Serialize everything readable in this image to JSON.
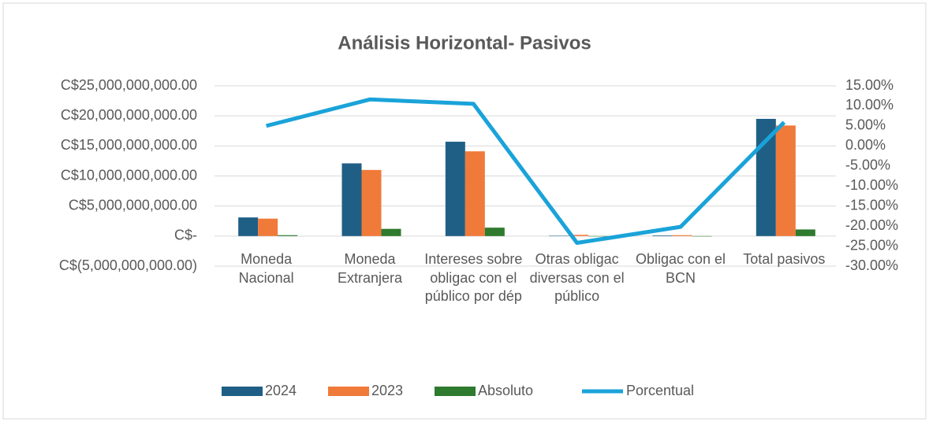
{
  "chart_data": {
    "type": "bar",
    "title": "Análisis Horizontal- Pasivos",
    "categories": [
      "Moneda Nacional",
      "Moneda Extranjera",
      "Intereses sobre obligac con el público por dép",
      "Otras obligac diversas con el público",
      "Obligac con el BCN",
      "Total pasivos"
    ],
    "series": [
      {
        "name": "2024",
        "color": "#1f5f86",
        "values": [
          3100000000,
          12100000000,
          15700000000,
          50000000,
          100000000,
          19500000000
        ]
      },
      {
        "name": "2023",
        "color": "#f07a3a",
        "values": [
          2900000000,
          11000000000,
          14100000000,
          200000000,
          150000000,
          18400000000
        ]
      },
      {
        "name": "Absoluto",
        "color": "#2e7a2e",
        "values": [
          150000000,
          1200000000,
          1400000000,
          -50000000,
          -30000000,
          1100000000
        ]
      },
      {
        "name": "Porcentual",
        "color": "#1aa3d9",
        "type": "line",
        "axis": "y2",
        "values": [
          5.0,
          11.6,
          10.5,
          -24.2,
          -20.2,
          5.9
        ]
      }
    ],
    "ylim": [
      -5000000000,
      25000000000
    ],
    "yticks": [
      {
        "value": -5000000000,
        "label": "C$(5,000,000,000.00)"
      },
      {
        "value": 0,
        "label": "C$-"
      },
      {
        "value": 5000000000,
        "label": "C$5,000,000,000.00"
      },
      {
        "value": 10000000000,
        "label": "C$10,000,000,000.00"
      },
      {
        "value": 15000000000,
        "label": "C$15,000,000,000.00"
      },
      {
        "value": 20000000000,
        "label": "C$20,000,000,000.00"
      },
      {
        "value": 25000000000,
        "label": "C$25,000,000,000.00"
      }
    ],
    "y2lim": [
      -30,
      15
    ],
    "y2ticks": [
      {
        "value": -30,
        "label": "-30.00%"
      },
      {
        "value": -25,
        "label": "-25.00%"
      },
      {
        "value": -20,
        "label": "-20.00%"
      },
      {
        "value": -15,
        "label": "-15.00%"
      },
      {
        "value": -10,
        "label": "-10.00%"
      },
      {
        "value": -5,
        "label": "-5.00%"
      },
      {
        "value": 0,
        "label": "0.00%"
      },
      {
        "value": 5,
        "label": "5.00%"
      },
      {
        "value": 10,
        "label": "10.00%"
      },
      {
        "value": 15,
        "label": "15.00%"
      }
    ],
    "grid": true,
    "legend": "bottom"
  }
}
